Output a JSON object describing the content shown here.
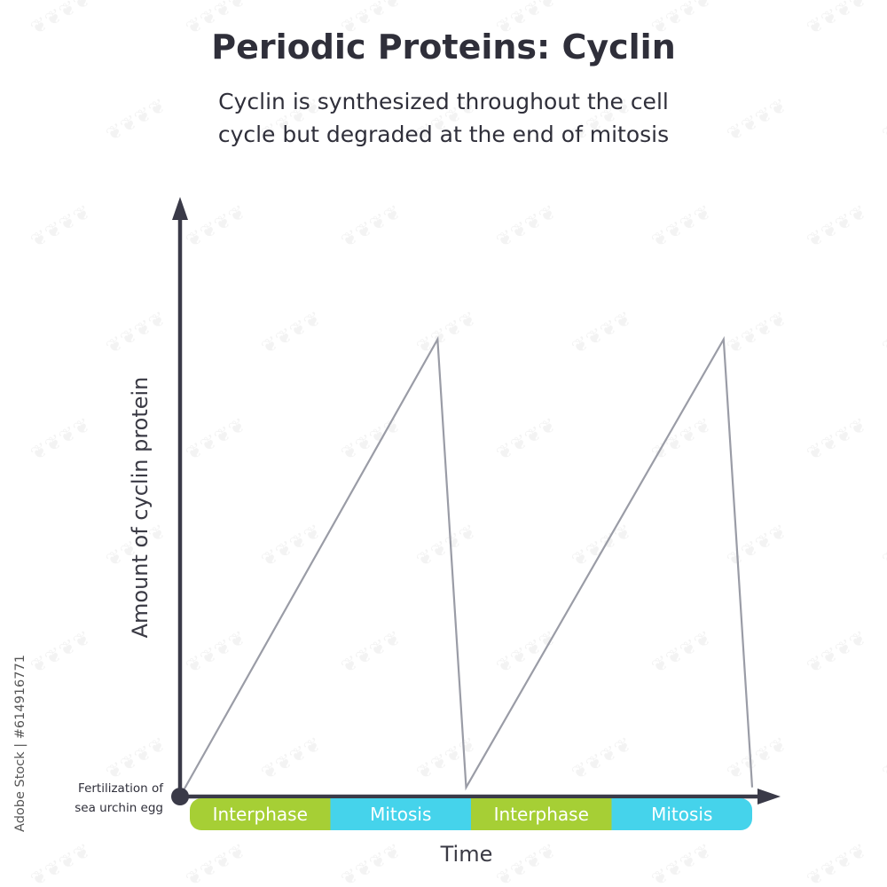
{
  "header": {
    "title": "Periodic Proteins: Cyclin",
    "subtitle_line1": "Cyclin is synthesized throughout the cell",
    "subtitle_line2": "cycle but degraded at the end of mitosis"
  },
  "colors": {
    "axis": "#3a3a48",
    "line": "#9a9ca6",
    "interphase": "#a6cf35",
    "mitosis": "#45d3eb",
    "text": "#2f2f3a"
  },
  "chart_data": {
    "type": "line",
    "title": "Periodic Proteins: Cyclin",
    "xlabel": "Time",
    "ylabel": "Amount of cyclin protein",
    "x": [
      0,
      1.8,
      2.0,
      3.8,
      4.0
    ],
    "series": [
      {
        "values": [
          0,
          1,
          0.02,
          1,
          0.02
        ]
      }
    ],
    "xlim": [
      0,
      4
    ],
    "ylim": [
      0,
      1.3
    ],
    "grid": false,
    "phases": [
      {
        "label": "Interphase",
        "start": 0,
        "end": 1
      },
      {
        "label": "Mitosis",
        "start": 1,
        "end": 2
      },
      {
        "label": "Interphase",
        "start": 2,
        "end": 3
      },
      {
        "label": "Mitosis",
        "start": 3,
        "end": 4
      }
    ],
    "origin_annotation_line1": "Fertilization of",
    "origin_annotation_line2": "sea urchin egg"
  },
  "credit": "Adobe Stock | #614916771"
}
